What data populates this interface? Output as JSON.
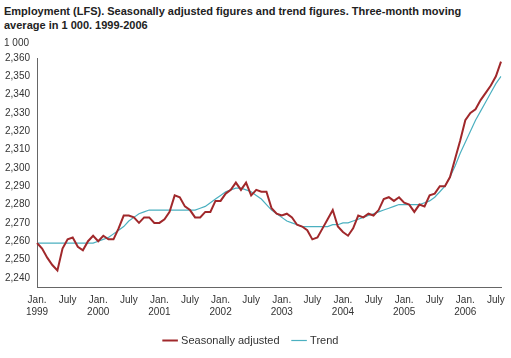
{
  "chart_data": {
    "type": "line",
    "title": "Employment (LFS). Seasonally adjusted figures and trend figures. Three-month moving average in 1 000. 1999-2006",
    "ylabel": "1 000",
    "categories": [
      "Jan. 1999",
      null,
      null,
      null,
      null,
      null,
      "July",
      null,
      null,
      null,
      null,
      null,
      "Jan. 2000",
      null,
      null,
      null,
      null,
      null,
      "July",
      null,
      null,
      null,
      null,
      null,
      "Jan. 2001",
      null,
      null,
      null,
      null,
      null,
      "July",
      null,
      null,
      null,
      null,
      null,
      "Jan. 2002",
      null,
      null,
      null,
      null,
      null,
      "July",
      null,
      null,
      null,
      null,
      null,
      "Jan. 2003",
      null,
      null,
      null,
      null,
      null,
      "July",
      null,
      null,
      null,
      null,
      null,
      "Jan. 2004",
      null,
      null,
      null,
      null,
      null,
      "July",
      null,
      null,
      null,
      null,
      null,
      "Jan. 2005",
      null,
      null,
      null,
      null,
      null,
      "July",
      null,
      null,
      null,
      null,
      null,
      "Jan. 2006",
      null,
      null,
      null,
      null,
      null,
      "July",
      null
    ],
    "series": [
      {
        "name": "Seasonally adjusted",
        "color": "#a0282b",
        "values": [
          2259,
          2256,
          2251,
          2247,
          2244,
          2256,
          2261,
          2262,
          2257,
          2255,
          2260,
          2263,
          2260,
          2263,
          2261,
          2261,
          2267,
          2274,
          2274,
          2273,
          2270,
          2273,
          2273,
          2270,
          2270,
          2272,
          2276,
          2285,
          2284,
          2279,
          2277,
          2273,
          2273,
          2276,
          2276,
          2282,
          2282,
          2286,
          2288,
          2292,
          2288,
          2292,
          2285,
          2288,
          2287,
          2287,
          2278,
          2275,
          2274,
          2275,
          2273,
          2269,
          2268,
          2266,
          2261,
          2262,
          2267,
          2272,
          2277,
          2268,
          2265,
          2263,
          2267,
          2274,
          2273,
          2275,
          2274,
          2277,
          2283,
          2284,
          2282,
          2284,
          2281,
          2280,
          2276,
          2280,
          2279,
          2285,
          2286,
          2290,
          2290,
          2295,
          2305,
          2315,
          2326,
          2330,
          2332,
          2337,
          2341,
          2345,
          2350,
          2358
        ]
      },
      {
        "name": "Trend",
        "color": "#4bb0c0",
        "values": [
          2259,
          2259,
          2259,
          2259,
          2259,
          2259,
          2259,
          2259,
          2259,
          2259,
          2259,
          2259,
          2260,
          2261,
          2262,
          2264,
          2266,
          2268,
          2271,
          2273,
          2275,
          2276,
          2277,
          2277,
          2277,
          2277,
          2277,
          2277,
          2277,
          2277,
          2277,
          2277,
          2278,
          2279,
          2281,
          2283,
          2285,
          2287,
          2288,
          2289,
          2289,
          2288,
          2287,
          2285,
          2283,
          2280,
          2277,
          2275,
          2273,
          2271,
          2270,
          2269,
          2268,
          2268,
          2268,
          2268,
          2268,
          2268,
          2269,
          2269,
          2270,
          2270,
          2271,
          2272,
          2273,
          2274,
          2275,
          2276,
          2277,
          2278,
          2279,
          2280,
          2280,
          2280,
          2280,
          2280,
          2281,
          2282,
          2284,
          2287,
          2290,
          2295,
          2301,
          2308,
          2314,
          2320,
          2326,
          2331,
          2336,
          2341,
          2346,
          2350
        ]
      }
    ],
    "ylim": [
      2235,
      2360
    ],
    "yticks": [
      2240,
      2250,
      2260,
      2270,
      2280,
      2290,
      2300,
      2310,
      2320,
      2330,
      2340,
      2350,
      2360
    ],
    "grid": false,
    "legend": "bottom"
  }
}
